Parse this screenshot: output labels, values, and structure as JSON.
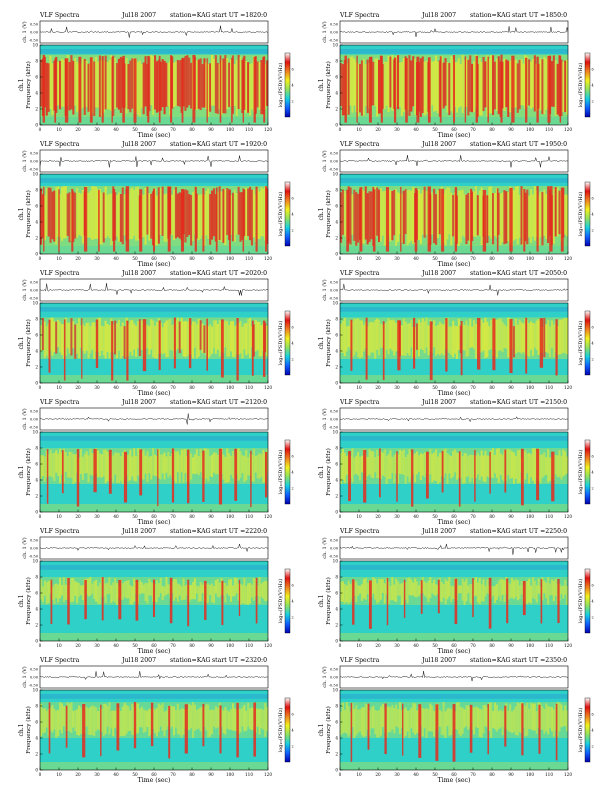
{
  "page": {
    "background": "#ffffff"
  },
  "panel_common": {
    "title": "VLF Spectra",
    "station": "station=KAG",
    "start_prefix": "start  UT  =",
    "waveform_ylabel": "ch. 1 (V)",
    "spectrogram_ylabel_line1": "ch.1",
    "spectrogram_ylabel_line2": "Frequency  (kHz)",
    "xlabel": "Time  (sec)",
    "colorbar_label": "log₁₀(PSD)(V²/Hz)",
    "colorbar_ticks": [
      "2",
      "4",
      "6"
    ],
    "waveform_ticks": [
      "0.50",
      "0.00",
      "-0.50"
    ],
    "colors": {
      "background": "#2fd0c8",
      "mid": "#9be06a",
      "active": "#f2ec2c",
      "intense": "#e52a1c",
      "low_band": "#1f6fd8",
      "colorbar": [
        "#0000b0",
        "#1060ff",
        "#18d0e0",
        "#90e060",
        "#f0f020",
        "#f08020",
        "#e01010",
        "#ffffff"
      ]
    }
  },
  "chart_data": [
    {
      "type": "heatmap",
      "title": "VLF Spectra",
      "date": "Jul18 2007",
      "station": "station=KAG",
      "start_ut": "1820:0",
      "xlabel": "Time  (sec)",
      "ylabel": "Frequency  (kHz)",
      "xlim": [
        0,
        120
      ],
      "ylim": [
        0,
        10
      ],
      "xticks": [
        0,
        10,
        20,
        30,
        40,
        50,
        60,
        70,
        80,
        90,
        100,
        110,
        120
      ],
      "yticks": [
        0,
        2,
        4,
        6,
        8,
        10
      ],
      "waveform_ylim": [
        -0.5,
        0.5
      ],
      "activity_band_khz": [
        1.0,
        8.8
      ],
      "activity_level": 0.85,
      "low_band_level": 0.1,
      "intense_bursts_sec": [
        2,
        8,
        14,
        21,
        27,
        33,
        38,
        44,
        50,
        57,
        63,
        69,
        75,
        81,
        88,
        95,
        101,
        107,
        113,
        118
      ]
    },
    {
      "type": "heatmap",
      "title": "VLF Spectra",
      "date": "Jul18 2007",
      "station": "station=KAG",
      "start_ut": "1850:0",
      "xlabel": "Time  (sec)",
      "ylabel": "Frequency  (kHz)",
      "xlim": [
        0,
        120
      ],
      "ylim": [
        0,
        10
      ],
      "xticks": [
        0,
        10,
        20,
        30,
        40,
        50,
        60,
        70,
        80,
        90,
        100,
        110,
        120
      ],
      "yticks": [
        0,
        2,
        4,
        6,
        8,
        10
      ],
      "waveform_ylim": [
        -0.5,
        0.5
      ],
      "activity_band_khz": [
        1.0,
        8.8
      ],
      "activity_level": 0.85,
      "low_band_level": 0.1,
      "intense_bursts_sec": [
        3,
        9,
        16,
        22,
        29,
        35,
        41,
        47,
        53,
        60,
        66,
        72,
        78,
        85,
        91,
        98,
        104,
        110,
        116
      ]
    },
    {
      "type": "heatmap",
      "title": "VLF Spectra",
      "date": "Jul18 2007",
      "station": "station=KAG",
      "start_ut": "1920:0",
      "xlabel": "Time  (sec)",
      "ylabel": "Frequency  (kHz)",
      "xlim": [
        0,
        120
      ],
      "ylim": [
        0,
        10
      ],
      "xticks": [
        0,
        10,
        20,
        30,
        40,
        50,
        60,
        70,
        80,
        90,
        100,
        110,
        120
      ],
      "yticks": [
        0,
        2,
        4,
        6,
        8,
        10
      ],
      "waveform_ylim": [
        -0.5,
        0.5
      ],
      "activity_band_khz": [
        1.0,
        8.5
      ],
      "activity_level": 0.8,
      "low_band_level": 0.12,
      "intense_bursts_sec": [
        2,
        10,
        17,
        24,
        31,
        39,
        46,
        53,
        60,
        68,
        75,
        82,
        86,
        93,
        100,
        107,
        114,
        119
      ]
    },
    {
      "type": "heatmap",
      "title": "VLF Spectra",
      "date": "Jul18 2007",
      "station": "station=KAG",
      "start_ut": "1950:0",
      "xlabel": "Time  (sec)",
      "ylabel": "Frequency  (kHz)",
      "xlim": [
        0,
        120
      ],
      "ylim": [
        0,
        10
      ],
      "xticks": [
        0,
        10,
        20,
        30,
        40,
        50,
        60,
        70,
        80,
        90,
        100,
        110,
        120
      ],
      "yticks": [
        0,
        2,
        4,
        6,
        8,
        10
      ],
      "waveform_ylim": [
        -0.5,
        0.5
      ],
      "activity_band_khz": [
        1.0,
        8.5
      ],
      "activity_level": 0.8,
      "low_band_level": 0.12,
      "intense_bursts_sec": [
        4,
        11,
        18,
        25,
        32,
        40,
        47,
        54,
        61,
        69,
        76,
        83,
        90,
        97,
        104,
        111,
        117
      ]
    },
    {
      "type": "heatmap",
      "title": "VLF Spectra",
      "date": "Jul18 2007",
      "station": "station=KAG",
      "start_ut": "2020:0",
      "xlabel": "Time  (sec)",
      "ylabel": "Frequency  (kHz)",
      "xlim": [
        0,
        120
      ],
      "ylim": [
        0,
        10
      ],
      "xticks": [
        0,
        10,
        20,
        30,
        40,
        50,
        60,
        70,
        80,
        90,
        100,
        110,
        120
      ],
      "yticks": [
        0,
        2,
        4,
        6,
        8,
        10
      ],
      "waveform_ylim": [
        -0.5,
        0.5
      ],
      "activity_band_khz": [
        3.0,
        8.2
      ],
      "activity_level": 0.6,
      "low_band_level": 0.25,
      "intense_bursts_sec": [
        5,
        13,
        22,
        30,
        38,
        46,
        55,
        63,
        71,
        79,
        88,
        96,
        104,
        112,
        118
      ]
    },
    {
      "type": "heatmap",
      "title": "VLF Spectra",
      "date": "Jul18 2007",
      "station": "station=KAG",
      "start_ut": "2050:0",
      "xlabel": "Time  (sec)",
      "ylabel": "Frequency  (kHz)",
      "xlim": [
        0,
        120
      ],
      "ylim": [
        0,
        10
      ],
      "xticks": [
        0,
        10,
        20,
        30,
        40,
        50,
        60,
        70,
        80,
        90,
        100,
        110,
        120
      ],
      "yticks": [
        0,
        2,
        4,
        6,
        8,
        10
      ],
      "waveform_ylim": [
        -0.5,
        0.5
      ],
      "activity_band_khz": [
        3.0,
        8.2
      ],
      "activity_level": 0.6,
      "low_band_level": 0.25,
      "intense_bursts_sec": [
        6,
        14,
        23,
        31,
        39,
        48,
        56,
        64,
        73,
        81,
        90,
        98,
        106,
        114
      ]
    },
    {
      "type": "heatmap",
      "title": "VLF Spectra",
      "date": "Jul18 2007",
      "station": "station=KAG",
      "start_ut": "2120:0",
      "xlabel": "Time  (sec)",
      "ylabel": "Frequency  (kHz)",
      "xlim": [
        0,
        120
      ],
      "ylim": [
        0,
        10
      ],
      "xticks": [
        0,
        10,
        20,
        30,
        40,
        50,
        60,
        70,
        80,
        90,
        100,
        110,
        120
      ],
      "yticks": [
        0,
        2,
        4,
        6,
        8,
        10
      ],
      "waveform_ylim": [
        -0.5,
        0.5
      ],
      "activity_band_khz": [
        3.5,
        8.0
      ],
      "activity_level": 0.45,
      "low_band_level": 0.35,
      "intense_bursts_sec": [
        4,
        12,
        20,
        29,
        37,
        45,
        53,
        62,
        70,
        78,
        86,
        95,
        103,
        111,
        119
      ]
    },
    {
      "type": "heatmap",
      "title": "VLF Spectra",
      "date": "Jul18 2007",
      "station": "station=KAG",
      "start_ut": "2150:0",
      "xlabel": "Time  (sec)",
      "ylabel": "Frequency  (kHz)",
      "xlim": [
        0,
        120
      ],
      "ylim": [
        0,
        10
      ],
      "xticks": [
        0,
        10,
        20,
        30,
        40,
        50,
        60,
        70,
        80,
        90,
        100,
        110,
        120
      ],
      "yticks": [
        0,
        2,
        4,
        6,
        8,
        10
      ],
      "waveform_ylim": [
        -0.5,
        0.5
      ],
      "activity_band_khz": [
        3.5,
        8.0
      ],
      "activity_level": 0.45,
      "low_band_level": 0.35,
      "intense_bursts_sec": [
        5,
        13,
        21,
        30,
        38,
        46,
        54,
        63,
        71,
        79,
        87,
        96,
        104,
        112
      ]
    },
    {
      "type": "heatmap",
      "title": "VLF Spectra",
      "date": "Jul18 2007",
      "station": "station=KAG",
      "start_ut": "2220:0",
      "xlabel": "Time  (sec)",
      "ylabel": "Frequency  (kHz)",
      "xlim": [
        0,
        120
      ],
      "ylim": [
        0,
        10
      ],
      "xticks": [
        0,
        10,
        20,
        30,
        40,
        50,
        60,
        70,
        80,
        90,
        100,
        110,
        120
      ],
      "yticks": [
        0,
        2,
        4,
        6,
        8,
        10
      ],
      "waveform_ylim": [
        -0.5,
        0.5
      ],
      "activity_band_khz": [
        4.5,
        8.0
      ],
      "activity_level": 0.4,
      "low_band_level": 0.4,
      "intense_bursts_sec": [
        6,
        15,
        24,
        33,
        42,
        51,
        60,
        69,
        78,
        87,
        96,
        105,
        114
      ]
    },
    {
      "type": "heatmap",
      "title": "VLF Spectra",
      "date": "Jul18 2007",
      "station": "station=KAG",
      "start_ut": "2250:0",
      "xlabel": "Time  (sec)",
      "ylabel": "Frequency  (kHz)",
      "xlim": [
        0,
        120
      ],
      "ylim": [
        0,
        10
      ],
      "xticks": [
        0,
        10,
        20,
        30,
        40,
        50,
        60,
        70,
        80,
        90,
        100,
        110,
        120
      ],
      "yticks": [
        0,
        2,
        4,
        6,
        8,
        10
      ],
      "waveform_ylim": [
        -0.5,
        0.5
      ],
      "activity_band_khz": [
        4.5,
        8.0
      ],
      "activity_level": 0.4,
      "low_band_level": 0.4,
      "intense_bursts_sec": [
        7,
        16,
        25,
        34,
        43,
        52,
        61,
        70,
        79,
        88,
        97,
        106,
        115
      ]
    },
    {
      "type": "heatmap",
      "title": "VLF Spectra",
      "date": "Jul18 2007",
      "station": "station=KAG",
      "start_ut": "2320:0",
      "xlabel": "Time  (sec)",
      "ylabel": "Frequency  (kHz)",
      "xlim": [
        0,
        120
      ],
      "ylim": [
        0,
        10
      ],
      "xticks": [
        0,
        10,
        20,
        30,
        40,
        50,
        60,
        70,
        80,
        90,
        100,
        110,
        120
      ],
      "yticks": [
        0,
        2,
        4,
        6,
        8,
        10
      ],
      "waveform_ylim": [
        -0.5,
        0.5
      ],
      "activity_band_khz": [
        4.0,
        8.5
      ],
      "activity_level": 0.35,
      "low_band_level": 0.45,
      "intense_bursts_sec": [
        5,
        14,
        23,
        32,
        41,
        50,
        59,
        68,
        77,
        86,
        95,
        104,
        113
      ]
    },
    {
      "type": "heatmap",
      "title": "VLF Spectra",
      "date": "Jul18 2007",
      "station": "station=KAG",
      "start_ut": "2350:0",
      "xlabel": "Time  (sec)",
      "ylabel": "Frequency  (kHz)",
      "xlim": [
        0,
        120
      ],
      "ylim": [
        0,
        10
      ],
      "xticks": [
        0,
        10,
        20,
        30,
        40,
        50,
        60,
        70,
        80,
        90,
        100,
        110,
        120
      ],
      "yticks": [
        0,
        2,
        4,
        6,
        8,
        10
      ],
      "waveform_ylim": [
        -0.5,
        0.5
      ],
      "activity_band_khz": [
        4.0,
        8.5
      ],
      "activity_level": 0.35,
      "low_band_level": 0.45,
      "intense_bursts_sec": [
        6,
        15,
        24,
        33,
        42,
        51,
        60,
        69,
        78,
        87,
        96,
        105,
        114
      ]
    }
  ]
}
